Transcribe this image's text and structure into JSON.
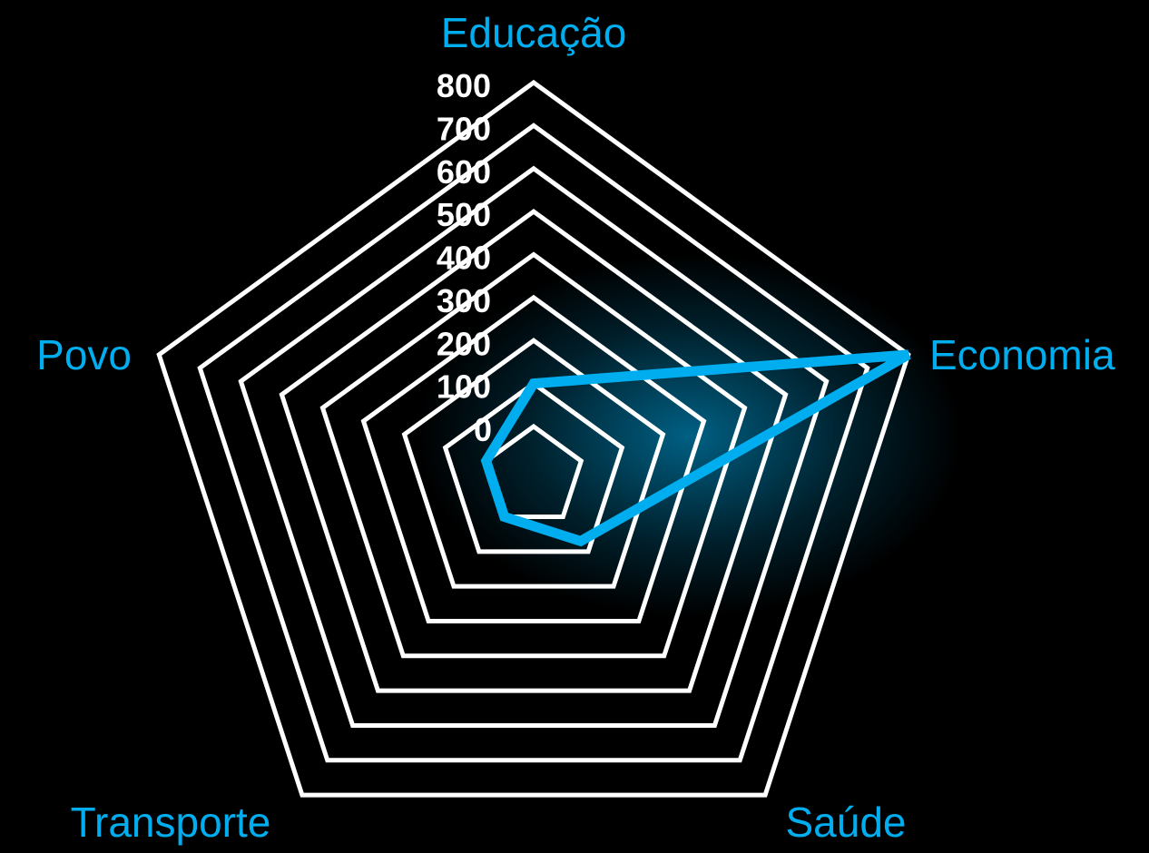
{
  "chart_data": {
    "type": "radar",
    "categories": [
      "Educação",
      "Economia",
      "Saúde",
      "Transporte",
      "Povo"
    ],
    "series": [
      {
        "values": [
          100,
          800,
          70,
          0,
          0
        ]
      }
    ],
    "rlim": [
      0,
      800
    ],
    "ticks": [
      0,
      100,
      200,
      300,
      400,
      500,
      600,
      700,
      800
    ],
    "tick_labels": [
      "0",
      "100",
      "200",
      "300",
      "400",
      "500",
      "600",
      "700",
      "800"
    ],
    "grid": true,
    "colors": {
      "background": "#000000",
      "grid": "#ffffff",
      "series": "#00aeef",
      "label": "#00aeef",
      "tick": "#ffffff"
    }
  }
}
